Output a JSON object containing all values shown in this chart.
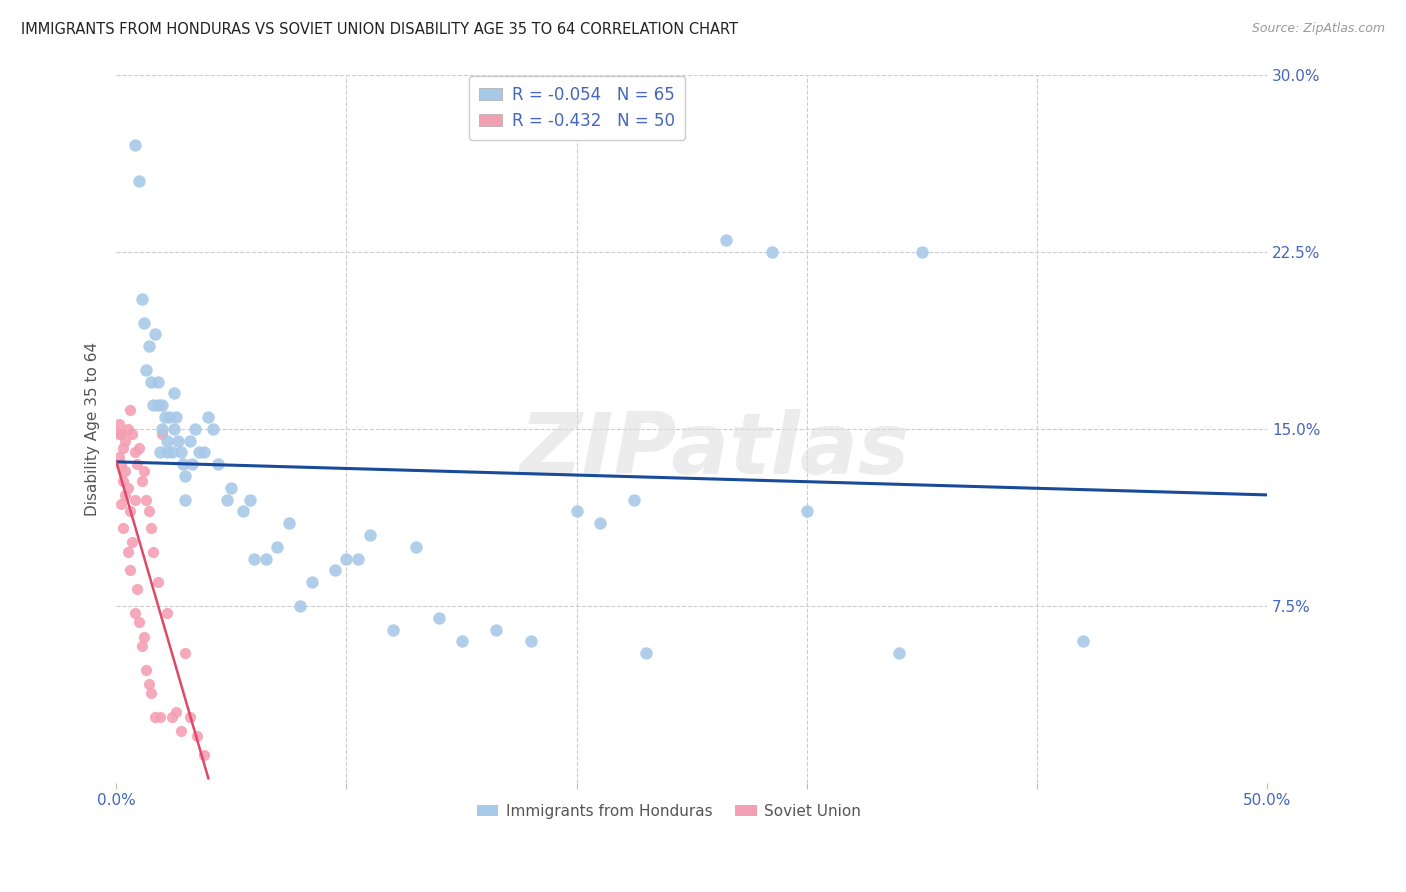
{
  "title": "IMMIGRANTS FROM HONDURAS VS SOVIET UNION DISABILITY AGE 35 TO 64 CORRELATION CHART",
  "source": "Source: ZipAtlas.com",
  "ylabel": "Disability Age 35 to 64",
  "xlim": [
    0.0,
    0.5
  ],
  "ylim": [
    0.0,
    0.3
  ],
  "xticks": [
    0.0,
    0.1,
    0.2,
    0.3,
    0.4,
    0.5
  ],
  "xtick_labels": [
    "0.0%",
    "",
    "",
    "",
    "",
    "50.0%"
  ],
  "yticks": [
    0.0,
    0.075,
    0.15,
    0.225,
    0.3
  ],
  "ytick_labels": [
    "",
    "7.5%",
    "15.0%",
    "22.5%",
    "30.0%"
  ],
  "bg_color": "#ffffff",
  "grid_color": "#cccccc",
  "honduras_color": "#a8c8e8",
  "soviet_color": "#f4a0b4",
  "honduras_line_color": "#1a4a9a",
  "soviet_line_color": "#e04868",
  "honduras_R": -0.054,
  "honduras_N": 65,
  "soviet_R": -0.432,
  "soviet_N": 50,
  "legend_label_1": "Immigrants from Honduras",
  "legend_label_2": "Soviet Union",
  "watermark": "ZIPatlas",
  "text_color": "#4466bb",
  "honduras_line_x0": 0.0,
  "honduras_line_x1": 0.5,
  "honduras_line_y0": 0.136,
  "honduras_line_y1": 0.122,
  "soviet_line_x0": 0.0,
  "soviet_line_x1": 0.04,
  "soviet_line_y0": 0.136,
  "soviet_line_y1": 0.002,
  "honduras_x": [
    0.008,
    0.01,
    0.011,
    0.012,
    0.013,
    0.014,
    0.015,
    0.016,
    0.017,
    0.018,
    0.018,
    0.019,
    0.02,
    0.02,
    0.021,
    0.022,
    0.022,
    0.023,
    0.024,
    0.025,
    0.025,
    0.026,
    0.027,
    0.028,
    0.029,
    0.03,
    0.03,
    0.032,
    0.033,
    0.034,
    0.036,
    0.038,
    0.04,
    0.042,
    0.044,
    0.048,
    0.05,
    0.055,
    0.058,
    0.06,
    0.065,
    0.07,
    0.075,
    0.08,
    0.085,
    0.095,
    0.1,
    0.105,
    0.11,
    0.12,
    0.13,
    0.14,
    0.15,
    0.165,
    0.18,
    0.2,
    0.21,
    0.225,
    0.23,
    0.265,
    0.285,
    0.3,
    0.34,
    0.35,
    0.42
  ],
  "honduras_y": [
    0.27,
    0.255,
    0.205,
    0.195,
    0.175,
    0.185,
    0.17,
    0.16,
    0.19,
    0.17,
    0.16,
    0.14,
    0.16,
    0.15,
    0.155,
    0.145,
    0.14,
    0.155,
    0.14,
    0.165,
    0.15,
    0.155,
    0.145,
    0.14,
    0.135,
    0.13,
    0.12,
    0.145,
    0.135,
    0.15,
    0.14,
    0.14,
    0.155,
    0.15,
    0.135,
    0.12,
    0.125,
    0.115,
    0.12,
    0.095,
    0.095,
    0.1,
    0.11,
    0.075,
    0.085,
    0.09,
    0.095,
    0.095,
    0.105,
    0.065,
    0.1,
    0.07,
    0.06,
    0.065,
    0.06,
    0.115,
    0.11,
    0.12,
    0.055,
    0.23,
    0.225,
    0.115,
    0.055,
    0.225,
    0.06
  ],
  "soviet_x": [
    0.001,
    0.001,
    0.001,
    0.002,
    0.002,
    0.002,
    0.003,
    0.003,
    0.003,
    0.004,
    0.004,
    0.004,
    0.005,
    0.005,
    0.005,
    0.006,
    0.006,
    0.006,
    0.007,
    0.007,
    0.008,
    0.008,
    0.008,
    0.009,
    0.009,
    0.01,
    0.01,
    0.011,
    0.011,
    0.012,
    0.012,
    0.013,
    0.013,
    0.014,
    0.014,
    0.015,
    0.015,
    0.016,
    0.017,
    0.018,
    0.019,
    0.02,
    0.022,
    0.024,
    0.026,
    0.028,
    0.03,
    0.032,
    0.035,
    0.038
  ],
  "soviet_y": [
    0.148,
    0.138,
    0.152,
    0.135,
    0.148,
    0.118,
    0.142,
    0.128,
    0.108,
    0.145,
    0.132,
    0.122,
    0.15,
    0.125,
    0.098,
    0.158,
    0.115,
    0.09,
    0.148,
    0.102,
    0.14,
    0.12,
    0.072,
    0.135,
    0.082,
    0.142,
    0.068,
    0.128,
    0.058,
    0.132,
    0.062,
    0.12,
    0.048,
    0.115,
    0.042,
    0.108,
    0.038,
    0.098,
    0.028,
    0.085,
    0.028,
    0.148,
    0.072,
    0.028,
    0.03,
    0.022,
    0.055,
    0.028,
    0.02,
    0.012
  ]
}
